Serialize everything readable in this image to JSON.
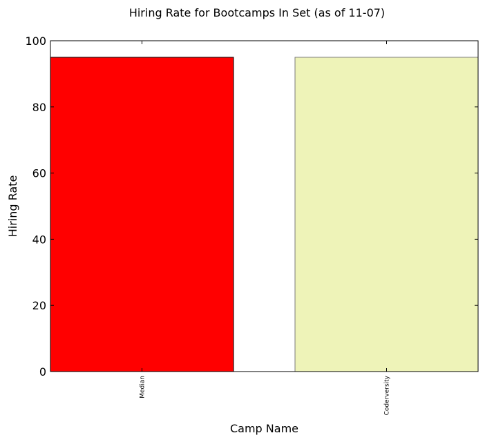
{
  "chart_data": {
    "type": "bar",
    "title": "Hiring Rate for Bootcamps In Set (as of 11-07)",
    "xlabel": "Camp Name",
    "ylabel": "Hiring Rate",
    "categories": [
      "Median",
      "Coderversity"
    ],
    "values": [
      95,
      95
    ],
    "colors": [
      "#ff0000",
      "#eef3b8"
    ],
    "edge_colors": [
      "#000000",
      "#7a7a7a"
    ],
    "ylim": [
      0,
      100
    ],
    "yticks": [
      0,
      20,
      40,
      60,
      80,
      100
    ],
    "ytick_labels": [
      "0",
      "20",
      "40",
      "60",
      "80",
      "100"
    ],
    "grid": false,
    "legend": "none"
  }
}
